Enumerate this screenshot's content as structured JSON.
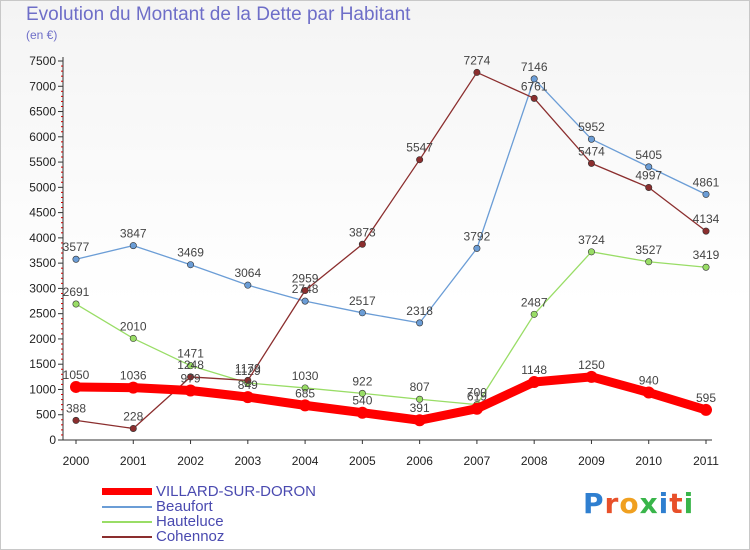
{
  "title": "Evolution du Montant de la Dette par Habitant",
  "subtitle": "(en €)",
  "logo": "Proxiti",
  "chart_data": {
    "type": "line",
    "title": "Evolution du Montant de la Dette par Habitant",
    "ylabel": "(en €)",
    "xlabel": "",
    "categories": [
      "2000",
      "2001",
      "2002",
      "2003",
      "2004",
      "2005",
      "2006",
      "2007",
      "2008",
      "2009",
      "2010",
      "2011"
    ],
    "ylim": [
      0,
      7500
    ],
    "yticks": [
      0,
      500,
      1000,
      1500,
      2000,
      2500,
      3000,
      3500,
      4000,
      4500,
      5000,
      5500,
      6000,
      6500,
      7000,
      7500
    ],
    "grid": false,
    "legend_position": "bottom-left",
    "series": [
      {
        "name": "VILLARD-SUR-DORON",
        "color": "#ff0000",
        "values": [
          1050,
          1036,
          979,
          849,
          685,
          540,
          391,
          619,
          1148,
          1250,
          940,
          595
        ]
      },
      {
        "name": "Beaufort",
        "color": "#6b9dd6",
        "values": [
          3577,
          3847,
          3469,
          3064,
          2748,
          2517,
          2318,
          3792,
          7146,
          5952,
          5405,
          4861
        ]
      },
      {
        "name": "Hauteluce",
        "color": "#99dd66",
        "values": [
          2691,
          2010,
          1471,
          1129,
          1030,
          922,
          807,
          700,
          2487,
          3724,
          3527,
          3419
        ]
      },
      {
        "name": "Cohennoz",
        "color": "#8b2e2e",
        "values": [
          388,
          228,
          1248,
          1179,
          2959,
          3873,
          5547,
          7274,
          6761,
          5474,
          4997,
          4134
        ]
      }
    ]
  }
}
